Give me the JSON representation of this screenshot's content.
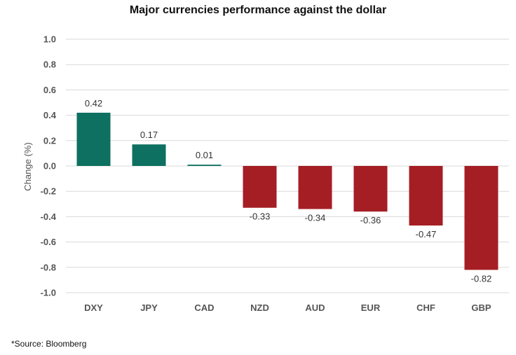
{
  "chart_data": {
    "type": "bar",
    "title": "Major currencies performance against the dollar",
    "xlabel": "",
    "ylabel": "Change (%)",
    "categories": [
      "DXY",
      "JPY",
      "CAD",
      "NZD",
      "AUD",
      "EUR",
      "CHF",
      "GBP"
    ],
    "values": [
      0.42,
      0.17,
      0.01,
      -0.33,
      -0.34,
      -0.36,
      -0.47,
      -0.82
    ],
    "value_labels": [
      "0.42",
      "0.17",
      "0.01",
      "-0.33",
      "-0.34",
      "-0.36",
      "-0.47",
      "-0.82"
    ],
    "ylim": [
      -1.0,
      1.0
    ],
    "yticks": [
      "1.0",
      "0.8",
      "0.6",
      "0.4",
      "0.2",
      "0.0",
      "-0.2",
      "-0.4",
      "-0.6",
      "-0.8",
      "-1.0"
    ],
    "ytick_values": [
      1.0,
      0.8,
      0.6,
      0.4,
      0.2,
      0.0,
      -0.2,
      -0.4,
      -0.6,
      -0.8,
      -1.0
    ],
    "grid": true,
    "legend": "none",
    "colors": {
      "positive": "#0E7060",
      "negative": "#A51E24",
      "grid": "#D9D9D9"
    }
  },
  "footer": {
    "source": "*Source: Bloomberg"
  }
}
